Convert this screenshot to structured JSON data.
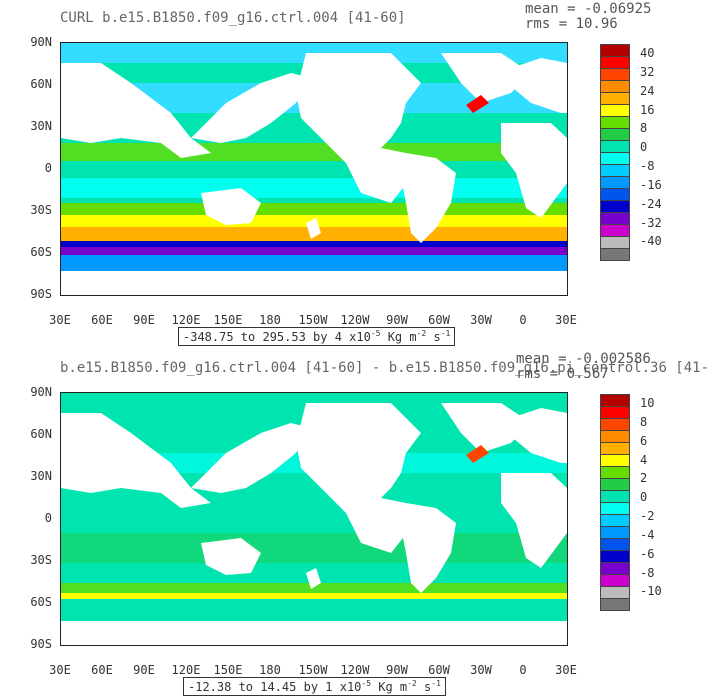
{
  "top": {
    "title": "CURL b.e15.B1850.f09_g16.ctrl.004 [41-60]",
    "mean": "mean = -0.06925",
    "rms": "rms = 10.96",
    "range_text": "-348.75 to 295.53 by 4 x10",
    "units_exp": "-5",
    "units_text": " Kg m",
    "units_exp2": "-2",
    "units_text2": " s",
    "units_exp3": "-1",
    "colorbar_labels": [
      "40",
      "32",
      "24",
      "16",
      "8",
      "0",
      "-8",
      "-16",
      "-24",
      "-32",
      "-40"
    ],
    "colorbar_colors": [
      "#b30000",
      "#ff0000",
      "#ff4500",
      "#ff8c00",
      "#ffb000",
      "#ffff00",
      "#66dd00",
      "#22cc44",
      "#00e5b0",
      "#00ffee",
      "#00ccff",
      "#0099ff",
      "#0055ee",
      "#0000cc",
      "#7700cc",
      "#cc00cc",
      "#bbbbbb",
      "#777777"
    ]
  },
  "bottom": {
    "title": "b.e15.B1850.f09_g16.ctrl.004 [41-60] - b.e15.B1850.f09_g16.pi_control.36 [41-",
    "mean": "mean = -0.002586",
    "rms": "rms = 0.567",
    "range_text": "-12.38 to 14.45 by 1 x10",
    "units_exp": "-5",
    "units_text": " Kg m",
    "units_exp2": "-2",
    "units_text2": " s",
    "units_exp3": "-1",
    "colorbar_labels": [
      "10",
      "8",
      "6",
      "4",
      "2",
      "0",
      "-2",
      "-4",
      "-6",
      "-8",
      "-10"
    ],
    "colorbar_colors": [
      "#b30000",
      "#ff0000",
      "#ff4500",
      "#ff8c00",
      "#ffb000",
      "#ffff00",
      "#66dd00",
      "#22cc44",
      "#00e5b0",
      "#00ffee",
      "#00ccff",
      "#0099ff",
      "#0055ee",
      "#0000cc",
      "#7700cc",
      "#cc00cc",
      "#bbbbbb",
      "#777777"
    ]
  },
  "lat_labels": [
    "90N",
    "60N",
    "30N",
    "0",
    "30S",
    "60S",
    "90S"
  ],
  "lon_labels": [
    "30E",
    "60E",
    "90E",
    "120E",
    "150E",
    "180",
    "150W",
    "120W",
    "90W",
    "60W",
    "30W",
    "0",
    "30E"
  ]
}
